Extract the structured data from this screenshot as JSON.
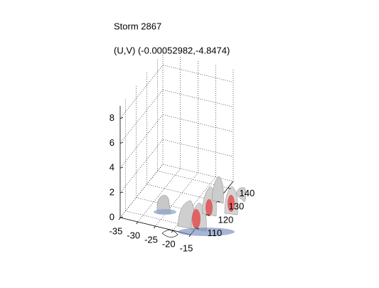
{
  "chart_data": {
    "type": "isosurface3d",
    "title": "Storm 2867",
    "subtitle": "(U,V) (-0.00052982,-4.8474)",
    "xlim": [
      -35,
      -15
    ],
    "xticks": [
      -35,
      -30,
      -25,
      -20,
      -15
    ],
    "ylim": [
      105,
      145
    ],
    "yticks": [
      110,
      120,
      130,
      140
    ],
    "zlim": [
      0,
      9
    ],
    "zticks": [
      0,
      2,
      4,
      6,
      8
    ],
    "grid": true
  }
}
